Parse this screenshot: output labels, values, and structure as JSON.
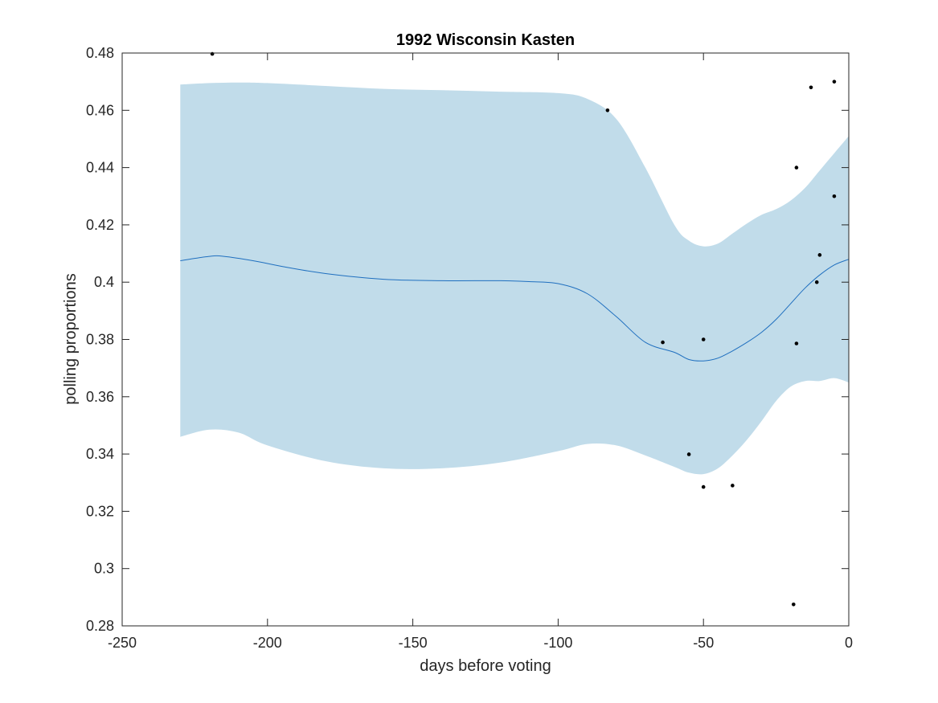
{
  "chart_data": {
    "type": "line",
    "title": "1992 Wisconsin Kasten",
    "xlabel": "days before voting",
    "ylabel": "polling proportions",
    "xlim": [
      -250,
      0
    ],
    "ylim": [
      0.28,
      0.48
    ],
    "xticks": [
      -250,
      -200,
      -150,
      -100,
      -50,
      0
    ],
    "xtick_labels": [
      "-250",
      "-200",
      "-150",
      "-100",
      "-50",
      "0"
    ],
    "yticks": [
      0.28,
      0.3,
      0.32,
      0.34,
      0.36,
      0.38,
      0.4,
      0.42,
      0.44,
      0.46,
      0.48
    ],
    "ytick_labels": [
      "0.28",
      "0.3",
      "0.32",
      "0.34",
      "0.36",
      "0.38",
      "0.4",
      "0.42",
      "0.44",
      "0.46",
      "0.48"
    ],
    "grid": false,
    "colors": {
      "mean_line": "#1f6fbf",
      "band_fill": "#c1dcea",
      "points": "#000000",
      "axes": "#262626"
    },
    "band": {
      "x": [
        -230,
        -220,
        -210,
        -200,
        -180,
        -160,
        -140,
        -120,
        -100,
        -90,
        -80,
        -70,
        -60,
        -55,
        -50,
        -45,
        -40,
        -35,
        -30,
        -25,
        -20,
        -15,
        -10,
        -5,
        0
      ],
      "upper": [
        0.469,
        0.4695,
        0.4697,
        0.4695,
        0.4685,
        0.4675,
        0.467,
        0.4665,
        0.466,
        0.464,
        0.457,
        0.44,
        0.42,
        0.4145,
        0.4125,
        0.4135,
        0.417,
        0.4205,
        0.4235,
        0.4255,
        0.4285,
        0.433,
        0.439,
        0.445,
        0.451
      ],
      "lower": [
        0.346,
        0.3485,
        0.3475,
        0.343,
        0.3375,
        0.335,
        0.335,
        0.337,
        0.341,
        0.3435,
        0.343,
        0.3395,
        0.3355,
        0.3335,
        0.333,
        0.335,
        0.3395,
        0.345,
        0.3515,
        0.3585,
        0.3635,
        0.3655,
        0.3655,
        0.3665,
        0.365
      ]
    },
    "series": [
      {
        "x": [
          -230,
          -220,
          -215,
          -205,
          -195,
          -180,
          -160,
          -140,
          -120,
          -110,
          -100,
          -90,
          -80,
          -70,
          -60,
          -55,
          -50,
          -45,
          -40,
          -35,
          -30,
          -25,
          -20,
          -15,
          -10,
          -5,
          0
        ],
        "y": [
          0.4075,
          0.409,
          0.409,
          0.4075,
          0.4055,
          0.403,
          0.401,
          0.4005,
          0.4005,
          0.4002,
          0.3995,
          0.396,
          0.388,
          0.379,
          0.3755,
          0.373,
          0.3725,
          0.3735,
          0.376,
          0.379,
          0.3825,
          0.387,
          0.3925,
          0.398,
          0.4025,
          0.406,
          0.408
        ]
      }
    ],
    "points": [
      {
        "x": -219,
        "y": 0.4797
      },
      {
        "x": -83,
        "y": 0.46
      },
      {
        "x": -64,
        "y": 0.379
      },
      {
        "x": -55,
        "y": 0.3399
      },
      {
        "x": -50,
        "y": 0.38
      },
      {
        "x": -50,
        "y": 0.3285
      },
      {
        "x": -40,
        "y": 0.329
      },
      {
        "x": -19,
        "y": 0.2875
      },
      {
        "x": -18,
        "y": 0.44
      },
      {
        "x": -18,
        "y": 0.3786
      },
      {
        "x": -13,
        "y": 0.468
      },
      {
        "x": -11,
        "y": 0.4
      },
      {
        "x": -10,
        "y": 0.4095
      },
      {
        "x": -5,
        "y": 0.47
      },
      {
        "x": -5,
        "y": 0.43
      }
    ]
  }
}
